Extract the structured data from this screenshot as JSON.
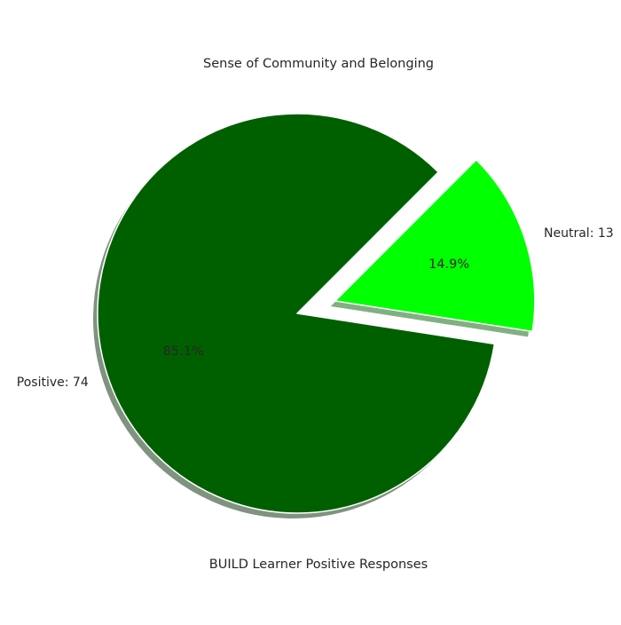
{
  "chart_data": {
    "type": "pie",
    "title": "Sense of Community and Belonging",
    "xlabel": "BUILD Learner Positive Responses",
    "slices": [
      {
        "label": "Positive: 74",
        "value": 74,
        "percent_label": "85.1%",
        "color": "#006000",
        "exploded": false
      },
      {
        "label": "Neutral: 13",
        "value": 13,
        "percent_label": "14.9%",
        "color": "#00ff00",
        "exploded": true
      }
    ],
    "shadow": true
  }
}
